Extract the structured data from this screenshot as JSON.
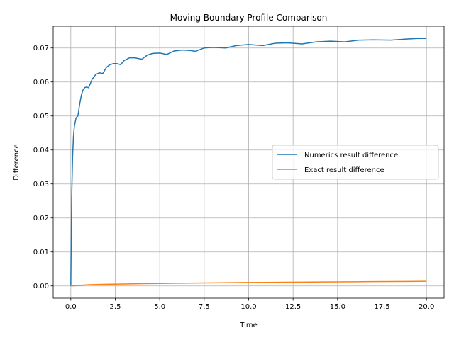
{
  "chart_data": {
    "type": "line",
    "title": "Moving Boundary Profile Comparison",
    "xlabel": "Time",
    "ylabel": "Difference",
    "xlim": [
      -0.99,
      20.99
    ],
    "ylim": [
      -0.0036,
      0.0764
    ],
    "xticks": [
      0.0,
      2.5,
      5.0,
      7.5,
      10.0,
      12.5,
      15.0,
      17.5,
      20.0
    ],
    "xtick_labels": [
      "0.0",
      "2.5",
      "5.0",
      "7.5",
      "10.0",
      "12.5",
      "15.0",
      "17.5",
      "20.0"
    ],
    "yticks": [
      0.0,
      0.01,
      0.02,
      0.03,
      0.04,
      0.05,
      0.06,
      0.07
    ],
    "ytick_labels": [
      "0.00",
      "0.01",
      "0.02",
      "0.03",
      "0.04",
      "0.05",
      "0.06",
      "0.07"
    ],
    "grid": true,
    "legend_position": "center-right",
    "series": [
      {
        "name": "Numerics result difference",
        "color": "#1f77b4",
        "x": [
          0,
          0.02,
          0.05,
          0.1,
          0.15,
          0.2,
          0.3,
          0.4,
          0.5,
          0.6,
          0.7,
          0.8,
          0.9,
          1.0,
          1.2,
          1.4,
          1.6,
          1.8,
          2.0,
          2.2,
          2.4,
          2.6,
          2.8,
          3.0,
          3.3,
          3.6,
          3.9,
          4.0,
          4.3,
          4.6,
          5.0,
          5.4,
          5.8,
          6.3,
          6.8,
          7.0,
          7.5,
          8.0,
          8.7,
          9.3,
          10.0,
          10.8,
          11.5,
          12.2,
          13.0,
          13.8,
          14.6,
          15.4,
          16.2,
          17.0,
          18.0,
          18.8,
          19.5,
          20.0
        ],
        "y": [
          0.0,
          0.012,
          0.026,
          0.038,
          0.044,
          0.047,
          0.0495,
          0.05,
          0.0535,
          0.0563,
          0.0578,
          0.0584,
          0.0585,
          0.0583,
          0.0608,
          0.0622,
          0.0627,
          0.0625,
          0.0643,
          0.0651,
          0.0654,
          0.0654,
          0.0651,
          0.0663,
          0.0671,
          0.0671,
          0.0668,
          0.0667,
          0.0679,
          0.0684,
          0.0685,
          0.0681,
          0.0691,
          0.0694,
          0.0692,
          0.069,
          0.07,
          0.0702,
          0.07,
          0.0707,
          0.071,
          0.0707,
          0.0714,
          0.0715,
          0.0712,
          0.0718,
          0.072,
          0.0718,
          0.0723,
          0.0724,
          0.0723,
          0.0726,
          0.0728,
          0.0728
        ]
      },
      {
        "name": "Exact result difference",
        "color": "#ff7f0e",
        "x": [
          0,
          1,
          2,
          3,
          4,
          5,
          6,
          7,
          8,
          9,
          10,
          11,
          12,
          13,
          14,
          15,
          16,
          17,
          18,
          19,
          20
        ],
        "y": [
          0.0,
          0.00035,
          0.00048,
          0.00058,
          0.00066,
          0.00073,
          0.00079,
          0.00085,
          0.0009,
          0.00095,
          0.001,
          0.00104,
          0.00108,
          0.00112,
          0.00116,
          0.0012,
          0.00123,
          0.00127,
          0.0013,
          0.00133,
          0.00137
        ]
      }
    ]
  }
}
